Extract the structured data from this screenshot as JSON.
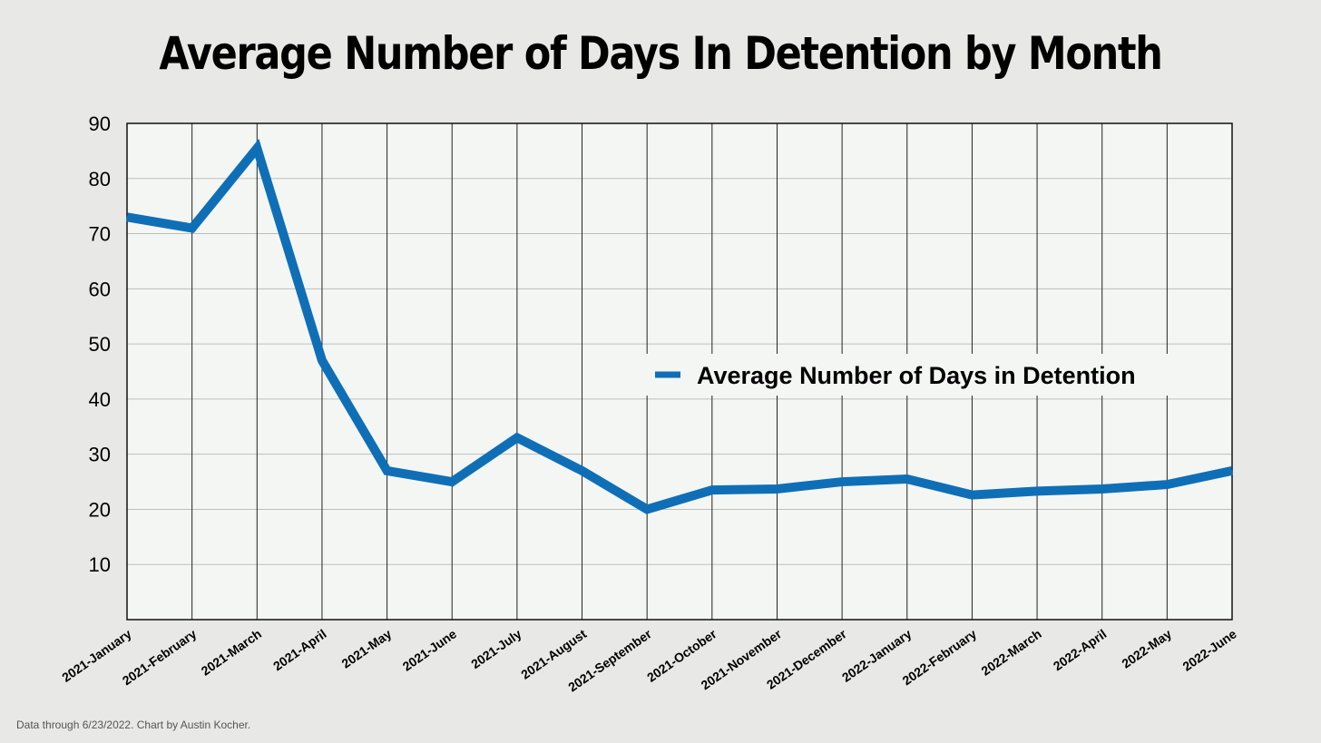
{
  "chart_data": {
    "type": "line",
    "title": "Average Number of Days In Detention by Month",
    "categories": [
      "2021-January",
      "2021-February",
      "2021-March",
      "2021-April",
      "2021-May",
      "2021-June",
      "2021-July",
      "2021-August",
      "2021-September",
      "2021-October",
      "2021-November",
      "2021-December",
      "2022-January",
      "2022-February",
      "2022-March",
      "2022-April",
      "2022-May",
      "2022-June"
    ],
    "series": [
      {
        "name": "Average Number of Days in Detention",
        "values": [
          73,
          71,
          85.5,
          47,
          27,
          25,
          33,
          27,
          20,
          23.5,
          23.7,
          25,
          25.5,
          22.6,
          23.3,
          23.7,
          24.5,
          27
        ],
        "color": "#0f6fb6"
      }
    ],
    "ylim": [
      0,
      90
    ],
    "yticks": [
      10,
      20,
      30,
      40,
      50,
      60,
      70,
      80,
      90
    ],
    "xlabel": "",
    "ylabel": "",
    "grid": true,
    "legend_position": "right-center"
  },
  "footnote": "Data through 6/23/2022. Chart by Austin Kocher."
}
